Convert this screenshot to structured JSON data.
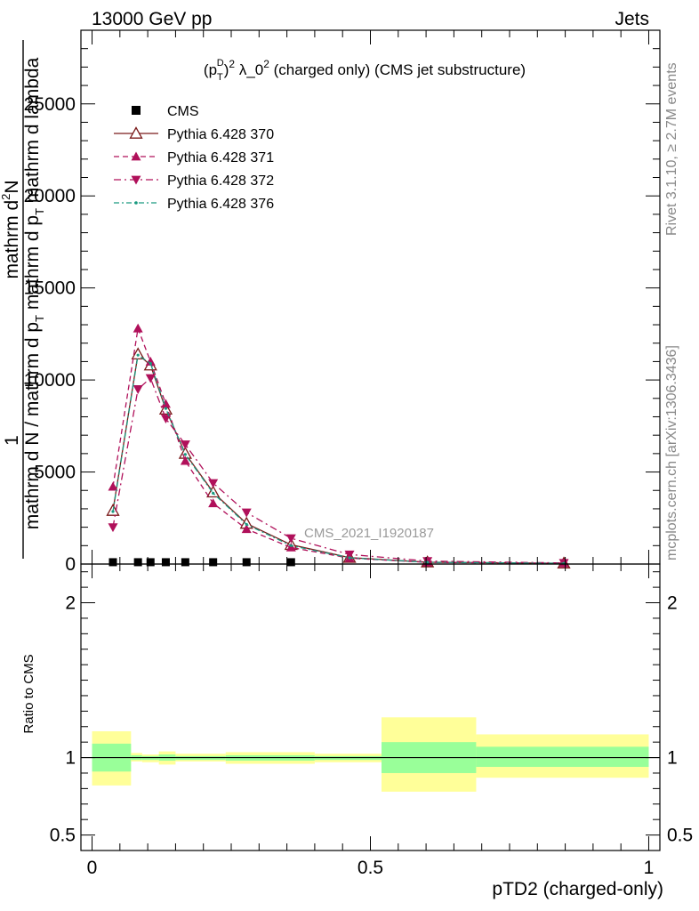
{
  "header": {
    "left": "13000 GeV pp",
    "right": "Jets"
  },
  "side_labels": {
    "rivet": "Rivet 3.1.10, ≥ 2.7M events",
    "mcplots": "mcplots.cern.ch [arXiv:1306.3436]"
  },
  "watermark": "CMS_2021_I1920187",
  "colors": {
    "cms": "#000000",
    "p370": "#7a1a1a",
    "p371": "#b0105a",
    "p372": "#b0105a",
    "p376": "#1a9a80",
    "band_inner": "#99ff99",
    "band_outer": "#ffff99",
    "watermark": "#9a9a9a"
  },
  "chart_data": [
    {
      "type": "line",
      "title_parts": {
        "base": "(p",
        "sub": "T",
        "sup_d": "D",
        "rest": ")",
        "sq": "2",
        "tail": " λ_0",
        "sq2": "2",
        "end": " (charged only) (CMS jet substructure)"
      },
      "ylabel_parts": {
        "one": "1",
        "numer": "mathrm d",
        "numer_sup": "2",
        "numer_rest": "N",
        "denom": "mathrm d N / mathrm d p",
        "denom_sub": "T",
        "denom_mid": " mathrm d p",
        "denom_sub2": "T",
        "denom_end": " mathrm d lambda"
      },
      "xlim": [
        -0.02,
        1.02
      ],
      "ylim": [
        0,
        29000
      ],
      "yticks": [
        0,
        5000,
        10000,
        15000,
        20000,
        25000
      ],
      "ytick_labels": [
        "0",
        "5000",
        "10000",
        "15000",
        "20000",
        "25000"
      ],
      "legend_position": "top-left",
      "x": [
        0.0375,
        0.0825,
        0.105,
        0.1325,
        0.1675,
        0.2175,
        0.2775,
        0.3575,
        0.4625,
        0.6025,
        0.8475
      ],
      "series": [
        {
          "name": "CMS",
          "marker": "square",
          "values": [
            100,
            100,
            100,
            100,
            100,
            100,
            100,
            100,
            0,
            0,
            0
          ]
        },
        {
          "name": "Pythia 6.428 370",
          "marker": "triangle-up-open",
          "line": "solid",
          "values": [
            2900,
            11400,
            10800,
            8400,
            6000,
            3900,
            2200,
            1050,
            350,
            100,
            40
          ]
        },
        {
          "name": "Pythia 6.428 371",
          "marker": "triangle-up",
          "line": "dashed",
          "values": [
            4200,
            12800,
            11000,
            8700,
            5600,
            3300,
            1900,
            900,
            320,
            90,
            35
          ]
        },
        {
          "name": "Pythia 6.428 372",
          "marker": "triangle-down",
          "line": "dashdot",
          "values": [
            2000,
            9500,
            10100,
            7900,
            6500,
            4400,
            2800,
            1400,
            520,
            160,
            60
          ]
        },
        {
          "name": "Pythia 6.428 376",
          "marker": "dot",
          "line": "dashdot",
          "values": [
            2850,
            11350,
            10900,
            8450,
            5950,
            3850,
            2150,
            1000,
            340,
            95,
            38
          ]
        }
      ]
    },
    {
      "type": "area",
      "ylabel": "Ratio to CMS",
      "xlabel": "pTD2 (charged-only)",
      "xlim": [
        -0.02,
        1.02
      ],
      "ylim": [
        0.4,
        2.25
      ],
      "yticks": [
        0.5,
        1,
        2
      ],
      "ytick_labels": [
        "0.5",
        "1",
        "2"
      ],
      "xticks": [
        0,
        0.5,
        1
      ],
      "xtick_labels": [
        "0",
        "0.5",
        "1"
      ],
      "reference": 1.0,
      "bins": [
        {
          "lo": 0.0,
          "hi": 0.07,
          "inner": [
            0.91,
            1.09
          ],
          "outer": [
            0.82,
            1.17
          ]
        },
        {
          "lo": 0.07,
          "hi": 0.09,
          "inner": [
            0.985,
            1.015
          ],
          "outer": [
            0.975,
            1.03
          ]
        },
        {
          "lo": 0.09,
          "hi": 0.12,
          "inner": [
            0.985,
            1.01
          ],
          "outer": [
            0.97,
            1.02
          ]
        },
        {
          "lo": 0.12,
          "hi": 0.15,
          "inner": [
            0.98,
            1.02
          ],
          "outer": [
            0.955,
            1.04
          ]
        },
        {
          "lo": 0.15,
          "hi": 0.24,
          "inner": [
            0.985,
            1.01
          ],
          "outer": [
            0.975,
            1.025
          ]
        },
        {
          "lo": 0.24,
          "hi": 0.4,
          "inner": [
            0.98,
            1.015
          ],
          "outer": [
            0.96,
            1.035
          ]
        },
        {
          "lo": 0.4,
          "hi": 0.52,
          "inner": [
            0.985,
            1.01
          ],
          "outer": [
            0.97,
            1.025
          ]
        },
        {
          "lo": 0.52,
          "hi": 0.69,
          "inner": [
            0.9,
            1.1
          ],
          "outer": [
            0.78,
            1.26
          ]
        },
        {
          "lo": 0.69,
          "hi": 1.0,
          "inner": [
            0.94,
            1.07
          ],
          "outer": [
            0.87,
            1.15
          ]
        }
      ]
    }
  ]
}
